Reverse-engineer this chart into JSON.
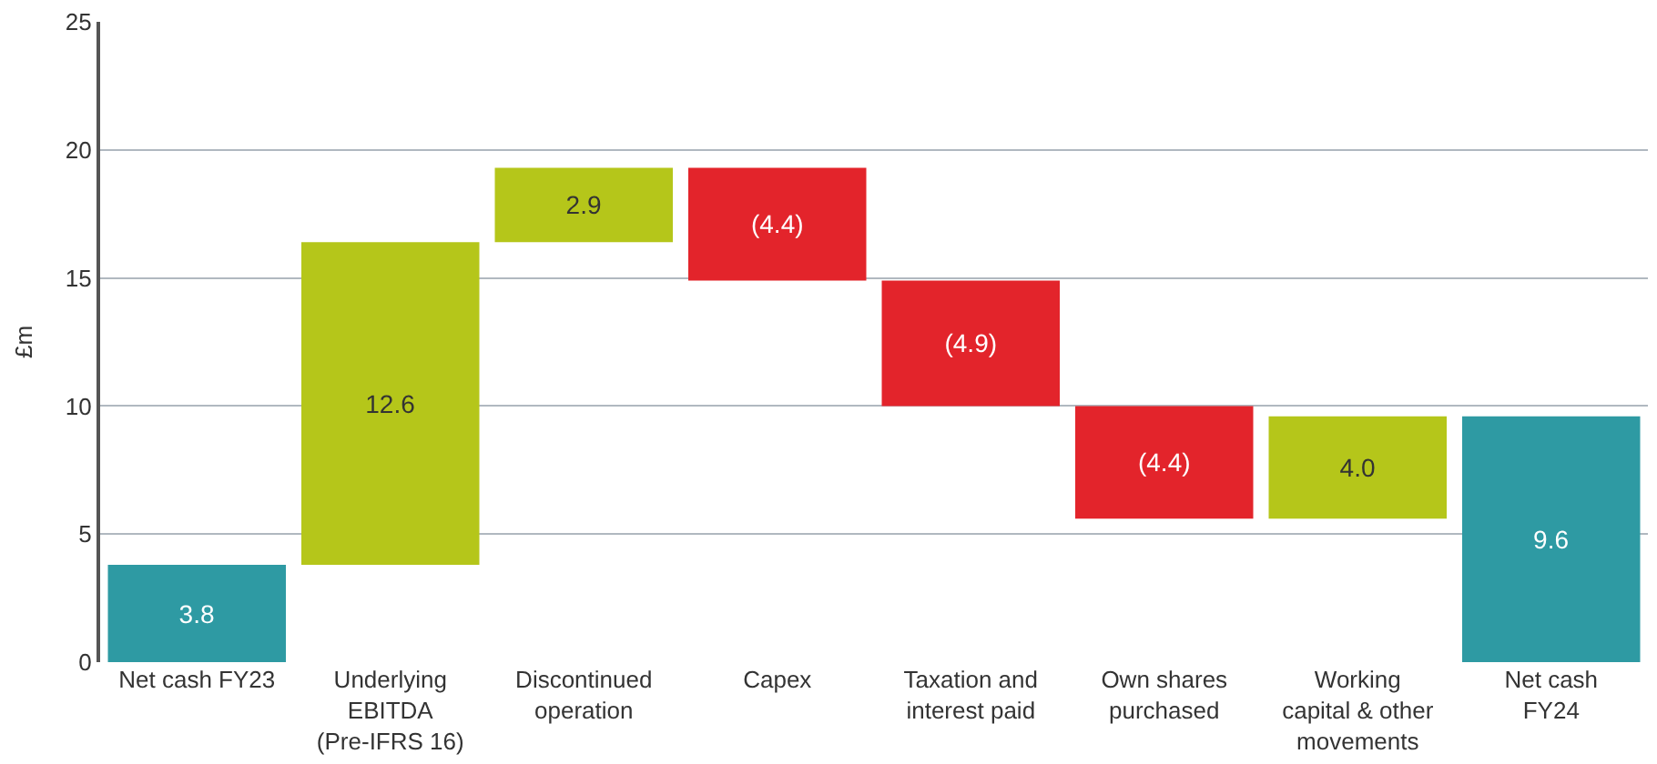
{
  "chart_data": {
    "type": "bar",
    "ylabel": "£m",
    "categories": [
      "Net cash FY23",
      "Underlying\nEBITDA\n(Pre-IFRS 16)",
      "Discontinued\noperation",
      "Capex",
      "Taxation and\ninterest paid",
      "Own shares\npurchased",
      "Working\ncapital & other\nmovements",
      "Net cash\nFY24"
    ],
    "values": [
      3.8,
      12.6,
      2.9,
      -4.4,
      -4.9,
      -4.4,
      4.0,
      9.6
    ],
    "base": [
      0,
      3.8,
      16.4,
      19.3,
      14.9,
      10.0,
      5.6,
      0
    ],
    "colors": [
      "#2e9aa3",
      "#b5c61a",
      "#b5c61a",
      "#e3242b",
      "#e3242b",
      "#e3242b",
      "#b5c61a",
      "#2e9aa3"
    ],
    "value_labels": [
      "3.8",
      "12.6",
      "2.9",
      "(4.4)",
      "(4.9)",
      "(4.4)",
      "4.0",
      "9.6"
    ],
    "ylim": [
      0,
      25
    ],
    "yticks": [
      0,
      5,
      10,
      15,
      20,
      25
    ],
    "grid": "y",
    "legend": false
  }
}
